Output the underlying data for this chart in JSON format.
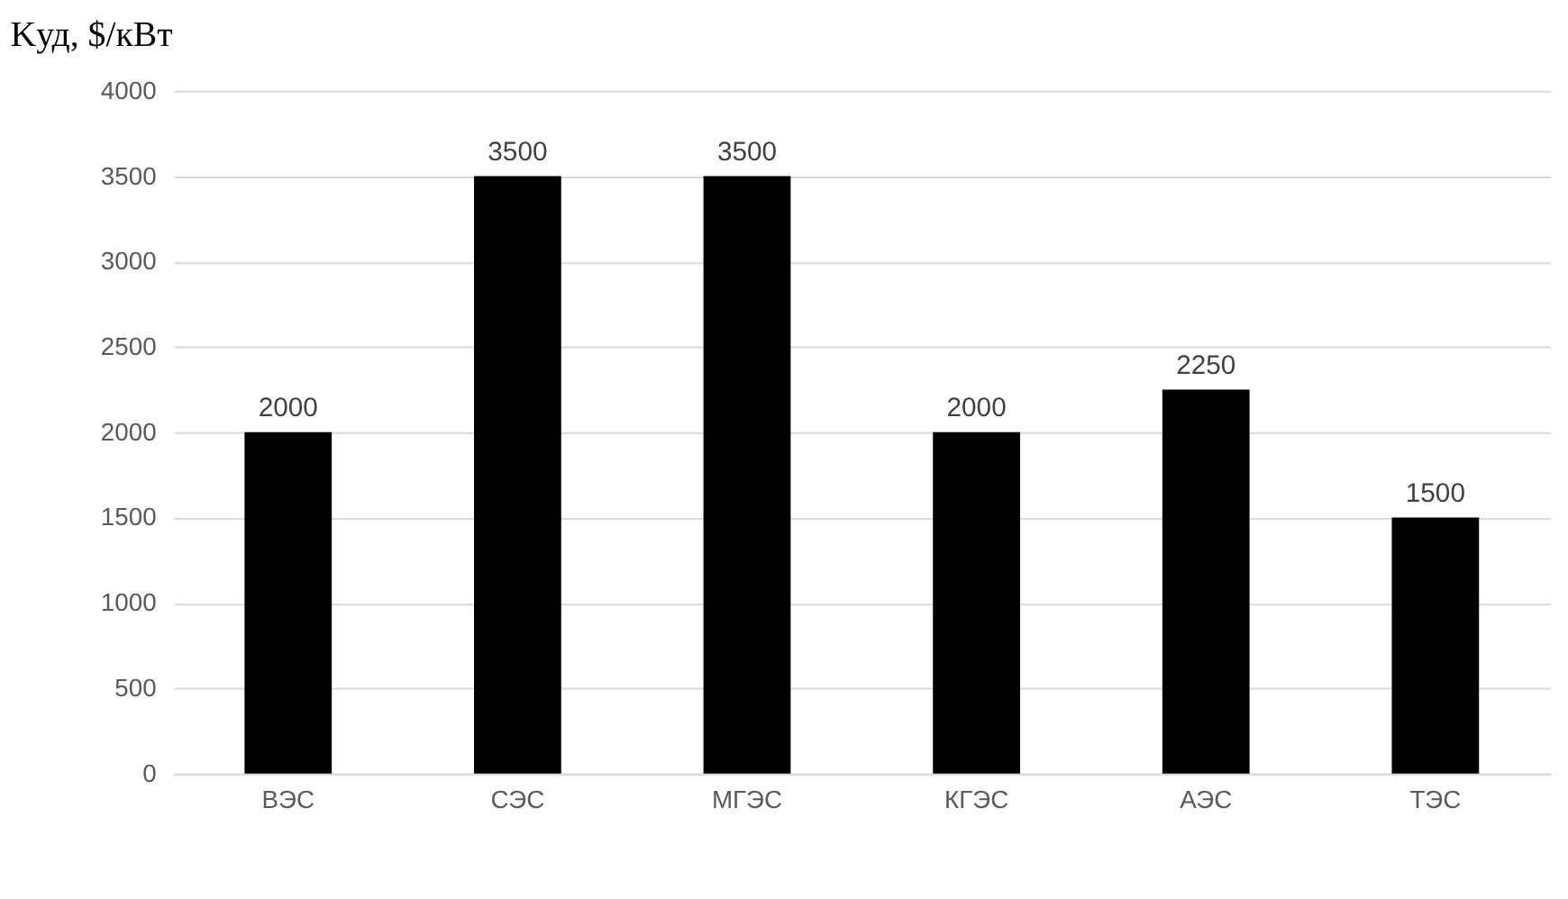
{
  "chart_data": {
    "type": "bar",
    "ylabel": "Kуд, $/кВт",
    "categories": [
      "ВЭС",
      "СЭС",
      "МГЭС",
      "КГЭС",
      "АЭС",
      "ТЭС"
    ],
    "values": [
      2000,
      3500,
      3500,
      2000,
      2250,
      1500
    ],
    "color": "#000000",
    "ylim": [
      0,
      4000
    ],
    "yticks": [
      0,
      500,
      1000,
      1500,
      2000,
      2500,
      3000,
      3500,
      4000
    ],
    "grid": "y",
    "data_labels": true
  }
}
